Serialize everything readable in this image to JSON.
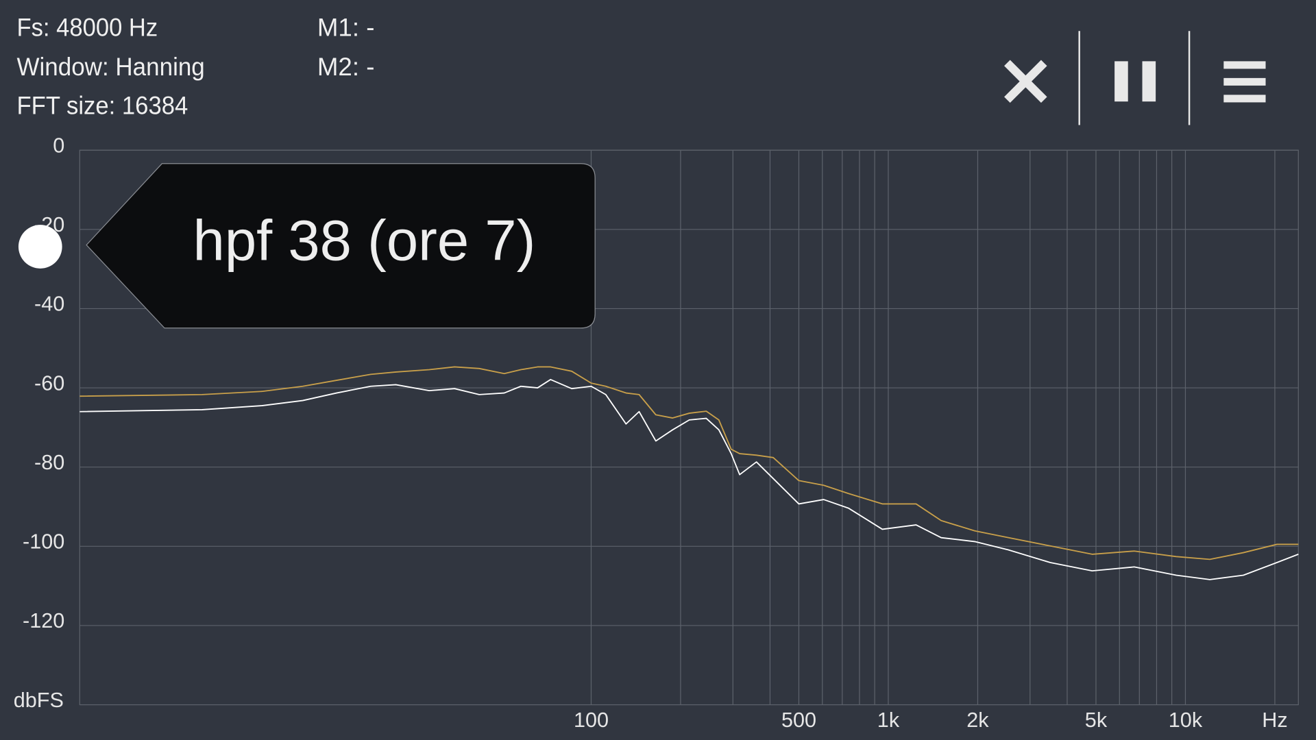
{
  "header": {
    "fs": "Fs: 48000 Hz",
    "window": "Window: Hanning",
    "fft_size": "FFT size: 16384",
    "m1": "M1: -",
    "m2": "M2: -"
  },
  "tooltip": "hpf 38 (ore 7)",
  "chart_data": {
    "type": "line",
    "xscale": "log",
    "grid": true,
    "xlabel": "Hz",
    "ylabel": "dbFS",
    "xlim": [
      1.9,
      24000
    ],
    "ylim": [
      -140,
      0
    ],
    "xticks": [
      100,
      500,
      {
        "value": 1000,
        "label": "1k"
      },
      {
        "value": 2000,
        "label": "2k"
      },
      {
        "value": 5000,
        "label": "5k"
      },
      {
        "value": 10000,
        "label": "10k"
      }
    ],
    "xgrid": [
      200,
      300,
      400,
      600,
      700,
      800,
      900,
      3000,
      4000,
      6000,
      7000,
      8000,
      9000,
      20000
    ],
    "yticks": [
      0,
      -20,
      -40,
      -60,
      -80,
      -100,
      -120
    ],
    "x": [
      1.9,
      4.9,
      7.8,
      10.7,
      13.9,
      18.1,
      22,
      28.5,
      34.7,
      42,
      51,
      58,
      66,
      73,
      86,
      100,
      112,
      131,
      145,
      165,
      188,
      214,
      244,
      269,
      296,
      316,
      360,
      410,
      500,
      606,
      736,
      955,
      1240,
      1507,
      1954,
      2535,
      3510,
      4856,
      6724,
      9310,
      12080,
      15670,
      20320,
      24000
    ],
    "series": [
      {
        "color": "#c9a04a",
        "values": [
          -62.1,
          -61.7,
          -60.9,
          -59.6,
          -58.1,
          -56.6,
          -56.0,
          -55.4,
          -54.7,
          -55.1,
          -56.4,
          -55.4,
          -54.7,
          -54.7,
          -55.8,
          -58.8,
          -59.6,
          -61.3,
          -61.7,
          -66.8,
          -67.6,
          -66.4,
          -65.9,
          -68.1,
          -75.5,
          -76.6,
          -77.0,
          -77.6,
          -83.4,
          -84.6,
          -86.7,
          -89.3,
          -89.3,
          -93.5,
          -96.1,
          -97.8,
          -99.9,
          -102.0,
          -101.2,
          -102.6,
          -103.3,
          -101.6,
          -99.5,
          -99.5
        ]
      },
      {
        "color": "#ffffff",
        "values": [
          -66.0,
          -65.5,
          -64.5,
          -63.2,
          -61.3,
          -59.6,
          -59.2,
          -60.7,
          -60.2,
          -61.7,
          -61.3,
          -59.6,
          -60.0,
          -57.9,
          -60.2,
          -59.6,
          -61.7,
          -69.1,
          -66.0,
          -73.4,
          -70.6,
          -68.1,
          -67.7,
          -70.6,
          -76.6,
          -81.9,
          -78.7,
          -82.9,
          -89.3,
          -88.2,
          -90.4,
          -95.7,
          -94.6,
          -97.8,
          -98.8,
          -100.9,
          -104.1,
          -106.2,
          -105.2,
          -107.3,
          -108.4,
          -107.3,
          -104.1,
          -102.0
        ]
      }
    ]
  }
}
